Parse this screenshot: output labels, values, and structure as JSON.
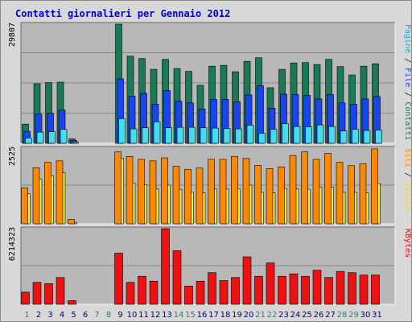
{
  "title": "Contatti giornalieri per Gennaio 2012",
  "colors": {
    "title": "#0000cc",
    "panel_bg": "#b8b8b8",
    "grid": "#8a8a8a",
    "pagine": "#44ddee",
    "file": "#1a44ee",
    "contatti": "#1a7a55",
    "siti": "#ff8800",
    "visite": "#ffee44",
    "kbytes": "#ee1111",
    "day_normal": "#000080",
    "day_weekend": "#2a8a55"
  },
  "chart_data": [
    {
      "type": "bar",
      "panel": "top",
      "ymax_label": "29807",
      "right_label_parts": [
        {
          "text": "Pagine",
          "color": "#22aacc"
        },
        {
          "text": " / ",
          "color": "#222222"
        },
        {
          "text": "File",
          "color": "#1a44ee"
        },
        {
          "text": " / ",
          "color": "#222222"
        },
        {
          "text": "Contatti",
          "color": "#1a7a55"
        }
      ],
      "ylim": [
        0,
        29807
      ],
      "categories": [
        "1",
        "2",
        "3",
        "4",
        "5",
        "6",
        "7",
        "8",
        "9",
        "10",
        "11",
        "12",
        "13",
        "14",
        "15",
        "16",
        "17",
        "18",
        "19",
        "20",
        "21",
        "22",
        "23",
        "24",
        "25",
        "26",
        "27",
        "28",
        "29",
        "30",
        "31"
      ],
      "series": [
        {
          "name": "Contatti",
          "values": [
            4800,
            14900,
            15200,
            15300,
            1100,
            0,
            0,
            0,
            29807,
            21800,
            21200,
            18500,
            21000,
            18700,
            18000,
            14500,
            19300,
            19500,
            17900,
            20500,
            21400,
            13900,
            18500,
            20100,
            20200,
            19700,
            21000,
            19200,
            17100,
            19300,
            19900
          ]
        },
        {
          "name": "File",
          "values": [
            3000,
            7300,
            7500,
            8300,
            700,
            0,
            0,
            0,
            16100,
            11800,
            12500,
            9800,
            13200,
            10500,
            10100,
            8600,
            11000,
            11000,
            10400,
            12100,
            14400,
            8800,
            12300,
            12200,
            12000,
            11100,
            12200,
            10100,
            9800,
            11100,
            11700
          ]
        },
        {
          "name": "Pagine",
          "values": [
            1300,
            2800,
            2900,
            3500,
            300,
            0,
            0,
            0,
            6200,
            3600,
            3900,
            5300,
            3900,
            4000,
            4000,
            3900,
            3800,
            3700,
            3600,
            4500,
            2500,
            3500,
            4900,
            4200,
            4100,
            4600,
            4200,
            3100,
            3500,
            3200,
            3300
          ]
        }
      ]
    },
    {
      "type": "bar",
      "panel": "middle",
      "ymax_label": "2525",
      "right_label_parts": [
        {
          "text": "Siti",
          "color": "#ff8800"
        },
        {
          "text": " / ",
          "color": "#222222"
        },
        {
          "text": "Visite",
          "color": "#eedd22"
        }
      ],
      "ylim": [
        0,
        2525
      ],
      "categories": [
        "1",
        "2",
        "3",
        "4",
        "5",
        "6",
        "7",
        "8",
        "9",
        "10",
        "11",
        "12",
        "13",
        "14",
        "15",
        "16",
        "17",
        "18",
        "19",
        "20",
        "21",
        "22",
        "23",
        "24",
        "25",
        "26",
        "27",
        "28",
        "29",
        "30",
        "31"
      ],
      "series": [
        {
          "name": "Visite",
          "values": [
            1000,
            1500,
            1600,
            1700,
            50,
            0,
            0,
            0,
            2180,
            1360,
            1300,
            1160,
            1290,
            1150,
            1050,
            1030,
            1160,
            1160,
            1160,
            1290,
            1050,
            1030,
            1180,
            1160,
            1150,
            1220,
            1220,
            1050,
            1050,
            1030,
            1340
          ]
        },
        {
          "name": "Siti",
          "values": [
            1200,
            1870,
            2050,
            2100,
            150,
            0,
            0,
            0,
            2400,
            2250,
            2150,
            2100,
            2200,
            1920,
            1820,
            1860,
            2150,
            2150,
            2250,
            2180,
            1950,
            1840,
            1900,
            2280,
            2400,
            2150,
            2350,
            2050,
            1940,
            2000,
            2500
          ]
        }
      ]
    },
    {
      "type": "bar",
      "panel": "bottom",
      "ymax_label": "6214323",
      "right_label_parts": [
        {
          "text": "KBytes",
          "color": "#ee1111"
        }
      ],
      "ylim": [
        0,
        6214323
      ],
      "categories": [
        "1",
        "2",
        "3",
        "4",
        "5",
        "6",
        "7",
        "8",
        "9",
        "10",
        "11",
        "12",
        "13",
        "14",
        "15",
        "16",
        "17",
        "18",
        "19",
        "20",
        "21",
        "22",
        "23",
        "24",
        "25",
        "26",
        "27",
        "28",
        "29",
        "30",
        "31"
      ],
      "series": [
        {
          "name": "KBytes",
          "values": [
            1000000,
            1800000,
            1700000,
            2200000,
            300000,
            0,
            0,
            0,
            4200000,
            1800000,
            2300000,
            1900000,
            6214323,
            4400000,
            1500000,
            1900000,
            2600000,
            1950000,
            2200000,
            3900000,
            2300000,
            3400000,
            2300000,
            2500000,
            2300000,
            2800000,
            2200000,
            2700000,
            2600000,
            2400000,
            2400000
          ]
        }
      ]
    }
  ],
  "days": [
    {
      "label": "1",
      "weekend": true
    },
    {
      "label": "2",
      "weekend": false
    },
    {
      "label": "3",
      "weekend": false
    },
    {
      "label": "4",
      "weekend": false
    },
    {
      "label": "5",
      "weekend": false
    },
    {
      "label": "6",
      "weekend": false
    },
    {
      "label": "7",
      "weekend": true
    },
    {
      "label": "8",
      "weekend": true
    },
    {
      "label": "9",
      "weekend": false
    },
    {
      "label": "10",
      "weekend": false
    },
    {
      "label": "11",
      "weekend": false
    },
    {
      "label": "12",
      "weekend": false
    },
    {
      "label": "13",
      "weekend": false
    },
    {
      "label": "14",
      "weekend": true
    },
    {
      "label": "15",
      "weekend": true
    },
    {
      "label": "16",
      "weekend": false
    },
    {
      "label": "17",
      "weekend": false
    },
    {
      "label": "18",
      "weekend": false
    },
    {
      "label": "19",
      "weekend": false
    },
    {
      "label": "20",
      "weekend": false
    },
    {
      "label": "21",
      "weekend": true
    },
    {
      "label": "22",
      "weekend": true
    },
    {
      "label": "23",
      "weekend": false
    },
    {
      "label": "24",
      "weekend": false
    },
    {
      "label": "25",
      "weekend": false
    },
    {
      "label": "26",
      "weekend": false
    },
    {
      "label": "27",
      "weekend": false
    },
    {
      "label": "28",
      "weekend": true
    },
    {
      "label": "29",
      "weekend": true
    },
    {
      "label": "30",
      "weekend": false
    },
    {
      "label": "31",
      "weekend": false
    }
  ]
}
